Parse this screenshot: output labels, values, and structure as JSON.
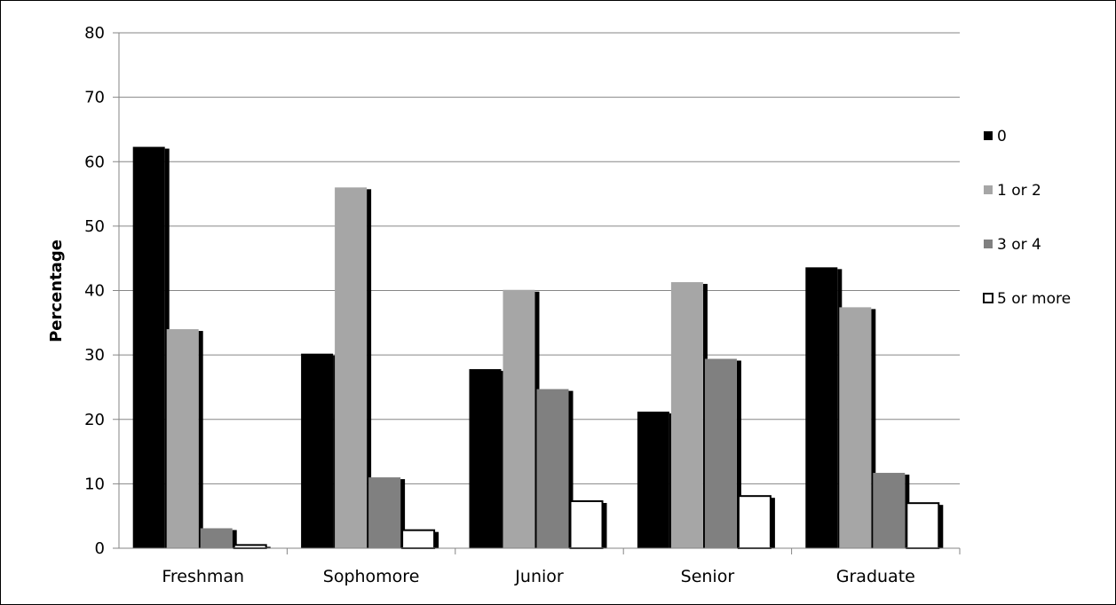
{
  "chart_data": {
    "type": "bar",
    "categories": [
      "Freshman",
      "Sophomore",
      "Junior",
      "Senior",
      "Graduate"
    ],
    "series": [
      {
        "name": "0",
        "values": [
          62.3,
          30.2,
          27.8,
          21.2,
          43.6
        ],
        "color": "#000000"
      },
      {
        "name": "1 or 2",
        "values": [
          34.0,
          56.0,
          40.1,
          41.3,
          37.4
        ],
        "color": "#a6a6a6"
      },
      {
        "name": "3 or 4",
        "values": [
          3.1,
          11.0,
          24.7,
          29.4,
          11.7
        ],
        "color": "#808080"
      },
      {
        "name": "5 or more",
        "values": [
          0.5,
          2.8,
          7.3,
          8.1,
          7.0
        ],
        "color": "#ffffff"
      }
    ],
    "ylabel": "Percentage",
    "ylim": [
      0,
      80
    ],
    "yticks": [
      "0",
      "10",
      "20",
      "30",
      "40",
      "50",
      "60",
      "70",
      "80"
    ],
    "grid": true,
    "legend_position": "right",
    "bar_shadow_color": "#000000",
    "gridline_color": "#868686"
  }
}
